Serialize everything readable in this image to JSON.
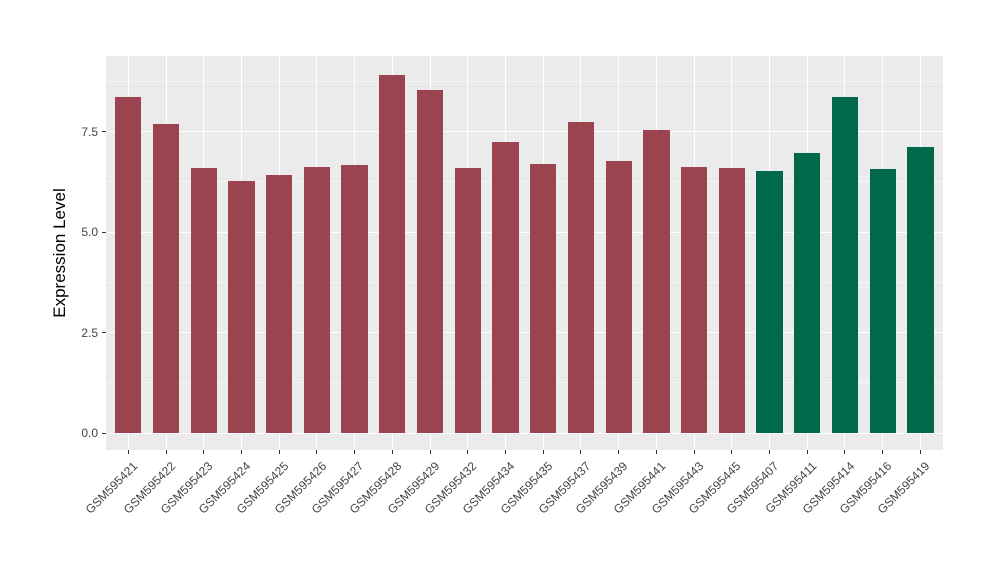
{
  "chart_data": {
    "type": "bar",
    "title": "",
    "xlabel": "",
    "ylabel": "Expression Level",
    "ylim": [
      -0.42,
      9.38
    ],
    "yticks": [
      0.0,
      2.5,
      5.0,
      7.5
    ],
    "ytick_labels": [
      "0.0",
      "2.5",
      "5.0",
      "7.5"
    ],
    "yminor_gridlines": [
      1.25,
      3.75,
      6.25,
      8.75
    ],
    "grid": true,
    "legend": false,
    "categories": [
      "GSM595421",
      "GSM595422",
      "GSM595423",
      "GSM595424",
      "GSM595425",
      "GSM595426",
      "GSM595427",
      "GSM595428",
      "GSM595429",
      "GSM595432",
      "GSM595434",
      "GSM595435",
      "GSM595437",
      "GSM595439",
      "GSM595441",
      "GSM595443",
      "GSM595445",
      "GSM595407",
      "GSM595411",
      "GSM595414",
      "GSM595416",
      "GSM595419"
    ],
    "values": [
      8.35,
      7.7,
      6.59,
      6.27,
      6.41,
      6.63,
      6.68,
      8.9,
      8.53,
      6.6,
      7.25,
      6.7,
      7.73,
      6.77,
      7.55,
      6.63,
      6.6,
      6.51,
      6.98,
      8.36,
      6.56,
      7.13
    ],
    "bar_groups": [
      0,
      0,
      0,
      0,
      0,
      0,
      0,
      0,
      0,
      0,
      0,
      0,
      0,
      0,
      0,
      0,
      0,
      1,
      1,
      1,
      1,
      1
    ],
    "group_colors": [
      "#9B4450",
      "#00694C"
    ],
    "colors": {
      "panel_background": "#EBEBEB",
      "gridline": "#FFFFFF",
      "tick_label": "#444444",
      "tick_mark": "#333333",
      "axis_title": "#000000"
    }
  }
}
